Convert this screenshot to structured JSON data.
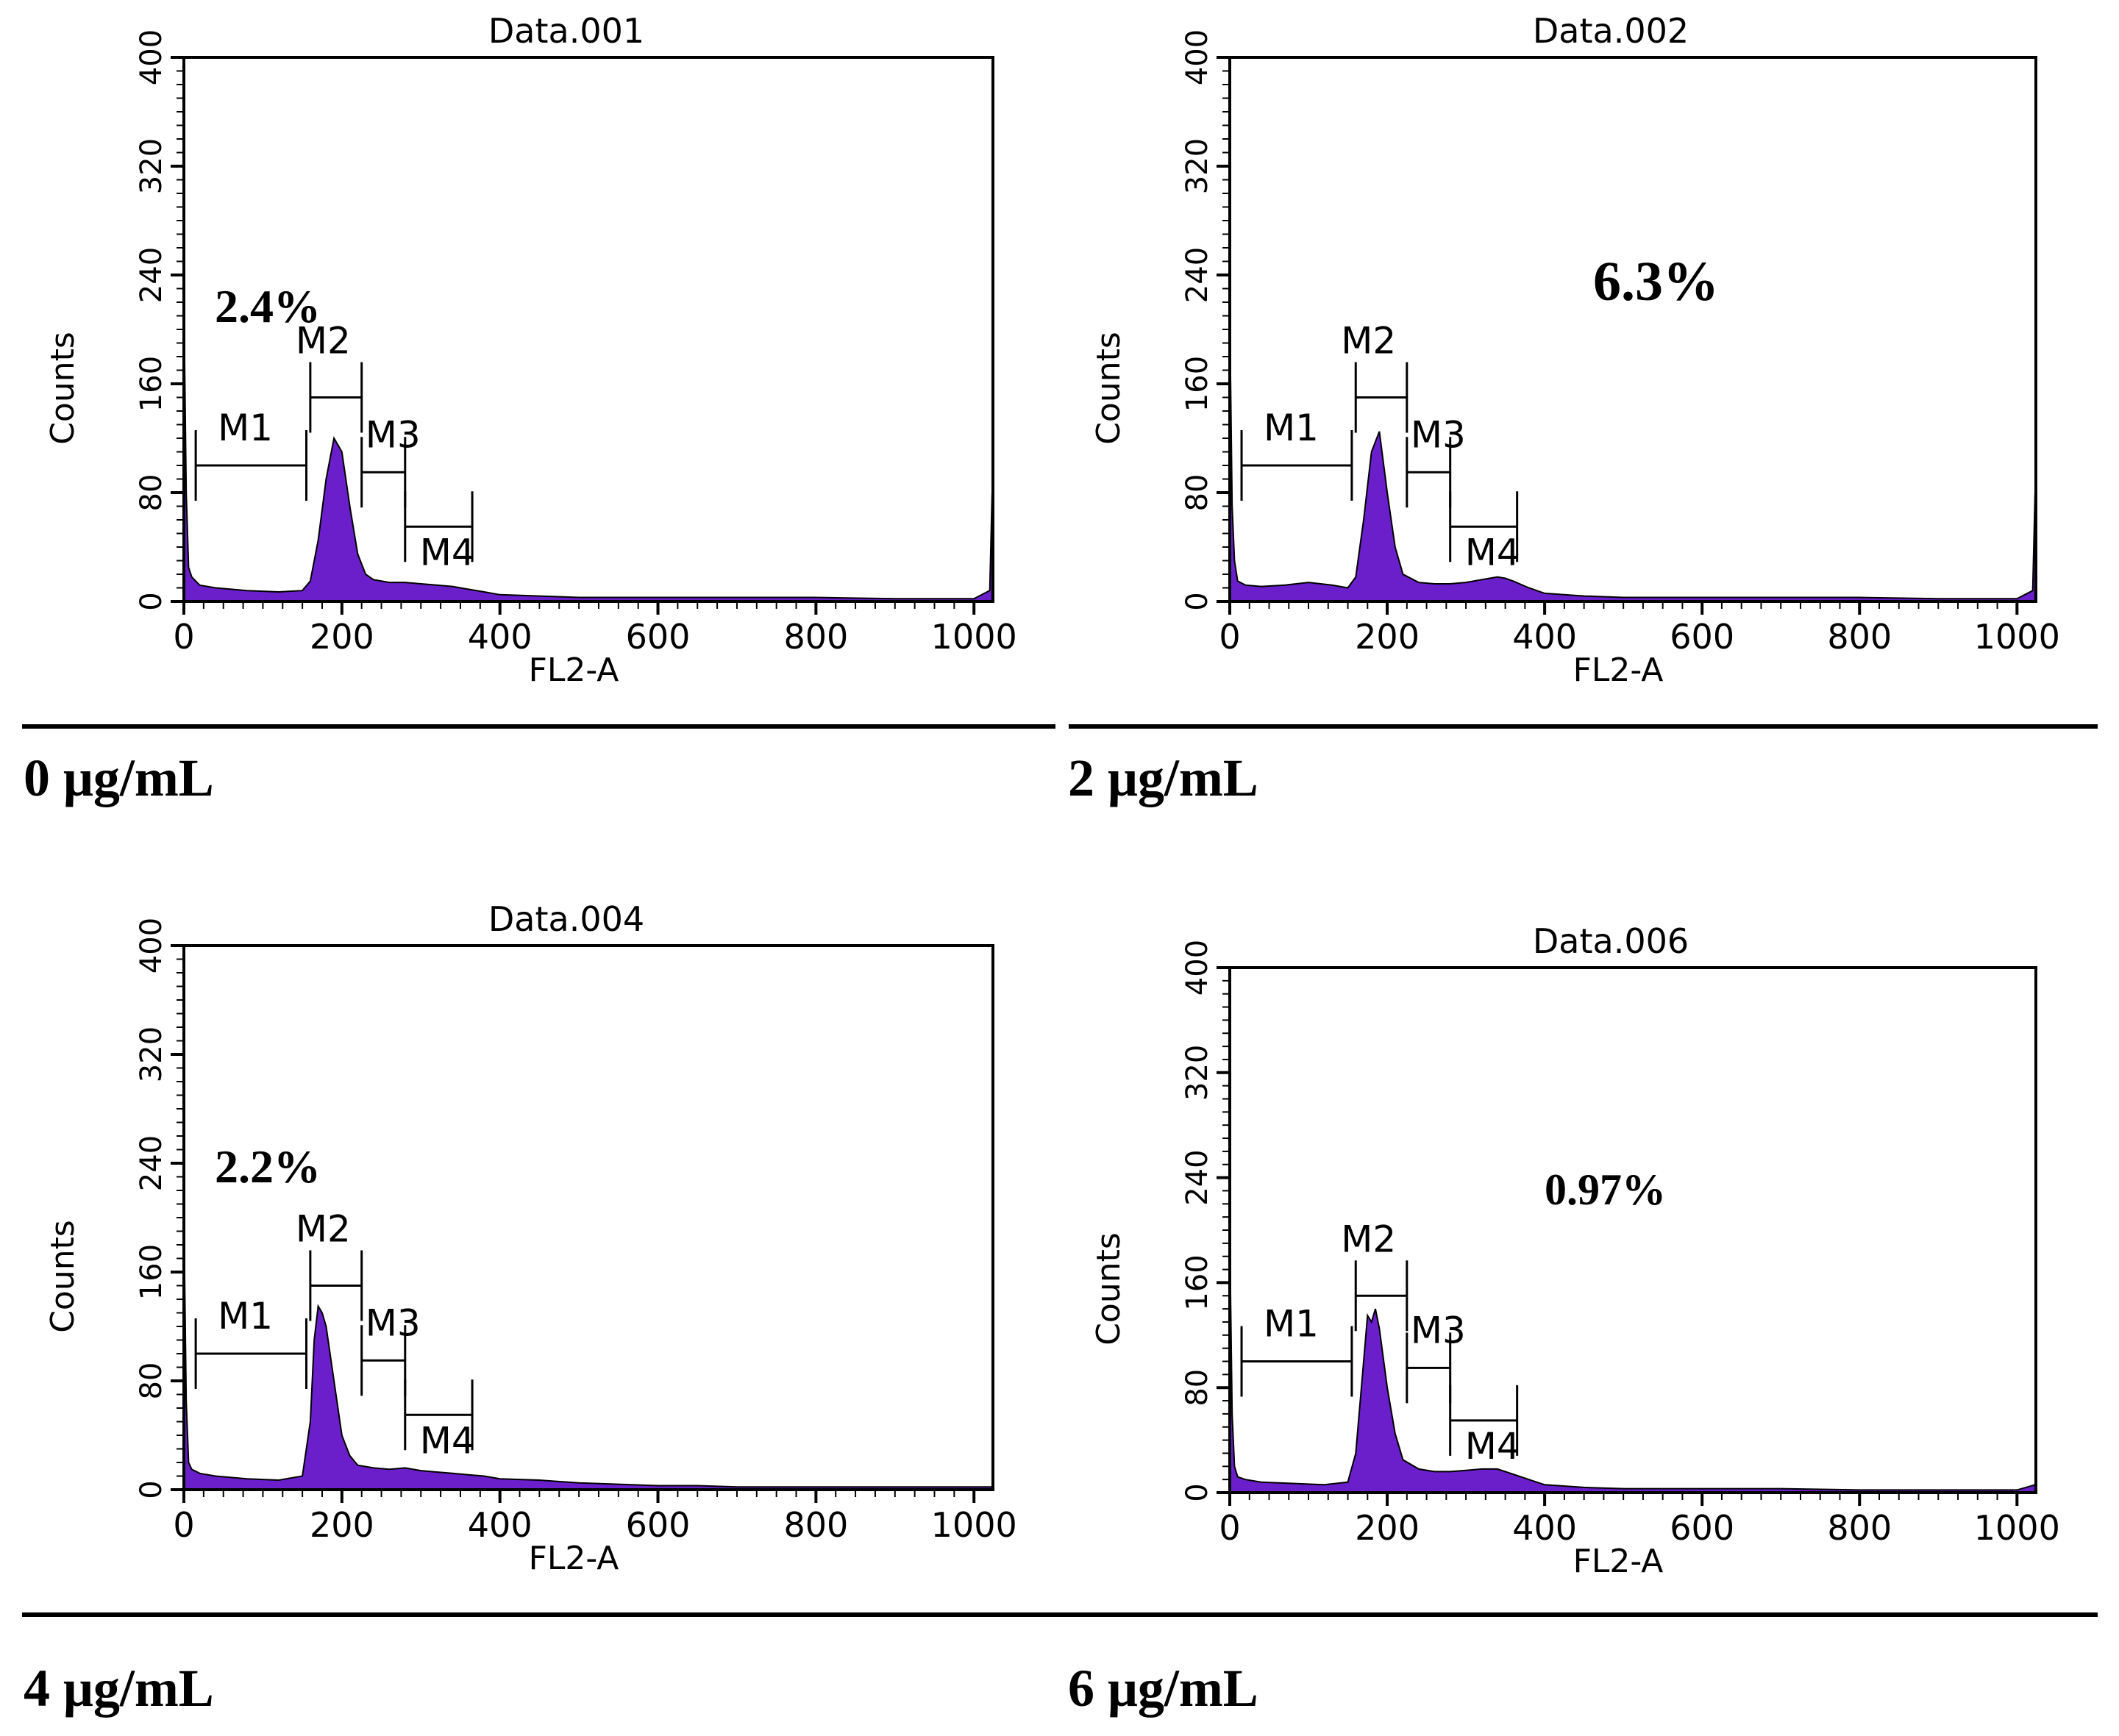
{
  "figure": {
    "hist_color": "#6a1fcb",
    "panels": [
      {
        "id": "p1",
        "title": "Data.001",
        "concentration": "0 μg/mL",
        "annotation": "2.4%"
      },
      {
        "id": "p2",
        "title": "Data.002",
        "concentration": "2 μg/mL",
        "annotation": "6.3%"
      },
      {
        "id": "p3",
        "title": "Data.004",
        "concentration": "4 μg/mL",
        "annotation": "2.2%"
      },
      {
        "id": "p4",
        "title": "Data.006",
        "concentration": "6 μg/mL",
        "annotation": "0.97%"
      }
    ]
  },
  "chart_data": [
    {
      "type": "histogram",
      "title": "Data.001",
      "xlabel": "FL2-A",
      "ylabel": "Counts",
      "xlim": [
        0,
        1024
      ],
      "ylim": [
        0,
        400
      ],
      "xticks": [
        0,
        200,
        400,
        600,
        800,
        1000
      ],
      "yticks": [
        0,
        80,
        160,
        240,
        320,
        400
      ],
      "annotation": "2.4%",
      "markers": [
        {
          "name": "M1",
          "start": 15,
          "end": 155
        },
        {
          "name": "M2",
          "start": 160,
          "end": 225
        },
        {
          "name": "M3",
          "start": 225,
          "end": 280
        },
        {
          "name": "M4",
          "start": 280,
          "end": 365
        }
      ],
      "series": [
        {
          "name": "Counts",
          "x": [
            0,
            3,
            6,
            10,
            20,
            40,
            80,
            120,
            150,
            160,
            170,
            180,
            190,
            200,
            210,
            220,
            230,
            240,
            260,
            280,
            300,
            320,
            340,
            360,
            380,
            400,
            450,
            500,
            600,
            700,
            800,
            900,
            1000,
            1020,
            1023
          ],
          "y": [
            220,
            80,
            25,
            18,
            12,
            10,
            8,
            7,
            8,
            15,
            45,
            90,
            120,
            110,
            70,
            35,
            20,
            16,
            14,
            14,
            13,
            12,
            11,
            9,
            7,
            5,
            4,
            3,
            3,
            3,
            3,
            2,
            2,
            8,
            80
          ]
        }
      ]
    },
    {
      "type": "histogram",
      "title": "Data.002",
      "xlabel": "FL2-A",
      "ylabel": "Counts",
      "xlim": [
        0,
        1024
      ],
      "ylim": [
        0,
        400
      ],
      "xticks": [
        0,
        200,
        400,
        600,
        800,
        1000
      ],
      "yticks": [
        0,
        80,
        160,
        240,
        320,
        400
      ],
      "annotation": "6.3%",
      "markers": [
        {
          "name": "M1",
          "start": 15,
          "end": 155
        },
        {
          "name": "M2",
          "start": 160,
          "end": 225
        },
        {
          "name": "M3",
          "start": 225,
          "end": 280
        },
        {
          "name": "M4",
          "start": 280,
          "end": 365
        }
      ],
      "series": [
        {
          "name": "Counts",
          "x": [
            0,
            3,
            6,
            10,
            20,
            40,
            70,
            100,
            130,
            150,
            160,
            170,
            180,
            190,
            200,
            210,
            220,
            240,
            260,
            280,
            300,
            320,
            340,
            350,
            360,
            380,
            400,
            450,
            500,
            600,
            700,
            800,
            900,
            1000,
            1020,
            1023
          ],
          "y": [
            210,
            70,
            30,
            15,
            12,
            11,
            12,
            14,
            12,
            10,
            18,
            60,
            110,
            125,
            80,
            40,
            20,
            14,
            13,
            13,
            14,
            16,
            18,
            17,
            15,
            10,
            6,
            4,
            3,
            3,
            3,
            3,
            2,
            2,
            8,
            80
          ]
        }
      ]
    },
    {
      "type": "histogram",
      "title": "Data.004",
      "xlabel": "FL2-A",
      "ylabel": "Counts",
      "xlim": [
        0,
        1024
      ],
      "ylim": [
        0,
        400
      ],
      "xticks": [
        0,
        200,
        400,
        600,
        800,
        1000
      ],
      "yticks": [
        0,
        80,
        160,
        240,
        320,
        400
      ],
      "annotation": "2.2%",
      "markers": [
        {
          "name": "M1",
          "start": 15,
          "end": 155
        },
        {
          "name": "M2",
          "start": 160,
          "end": 225
        },
        {
          "name": "M3",
          "start": 225,
          "end": 280
        },
        {
          "name": "M4",
          "start": 280,
          "end": 365
        }
      ],
      "series": [
        {
          "name": "Counts",
          "x": [
            0,
            3,
            6,
            10,
            20,
            40,
            80,
            120,
            150,
            160,
            165,
            170,
            175,
            180,
            190,
            200,
            210,
            220,
            240,
            260,
            280,
            300,
            320,
            340,
            360,
            380,
            400,
            450,
            500,
            550,
            600,
            650,
            700,
            800,
            900,
            1000,
            1023
          ],
          "y": [
            200,
            65,
            20,
            15,
            12,
            10,
            8,
            7,
            10,
            50,
            110,
            135,
            130,
            120,
            80,
            40,
            25,
            18,
            16,
            15,
            16,
            14,
            13,
            12,
            11,
            10,
            8,
            7,
            5,
            4,
            3,
            3,
            2,
            2,
            2,
            2,
            2
          ]
        }
      ]
    },
    {
      "type": "histogram",
      "title": "Data.006",
      "xlabel": "FL2-A",
      "ylabel": "Counts",
      "xlim": [
        0,
        1024
      ],
      "ylim": [
        0,
        400
      ],
      "xticks": [
        0,
        200,
        400,
        600,
        800,
        1000
      ],
      "yticks": [
        0,
        80,
        160,
        240,
        320,
        400
      ],
      "annotation": "0.97%",
      "markers": [
        {
          "name": "M1",
          "start": 15,
          "end": 155
        },
        {
          "name": "M2",
          "start": 160,
          "end": 225
        },
        {
          "name": "M3",
          "start": 225,
          "end": 280
        },
        {
          "name": "M4",
          "start": 280,
          "end": 365
        }
      ],
      "series": [
        {
          "name": "Counts",
          "x": [
            0,
            3,
            6,
            10,
            20,
            40,
            80,
            120,
            150,
            160,
            170,
            175,
            180,
            185,
            190,
            200,
            210,
            220,
            240,
            260,
            280,
            300,
            320,
            340,
            360,
            380,
            400,
            450,
            500,
            600,
            700,
            800,
            900,
            1000,
            1023
          ],
          "y": [
            195,
            60,
            20,
            12,
            10,
            8,
            7,
            6,
            8,
            30,
            100,
            135,
            130,
            140,
            125,
            80,
            45,
            25,
            18,
            16,
            16,
            17,
            18,
            18,
            14,
            10,
            6,
            4,
            3,
            3,
            3,
            2,
            2,
            2,
            6
          ]
        }
      ]
    }
  ]
}
